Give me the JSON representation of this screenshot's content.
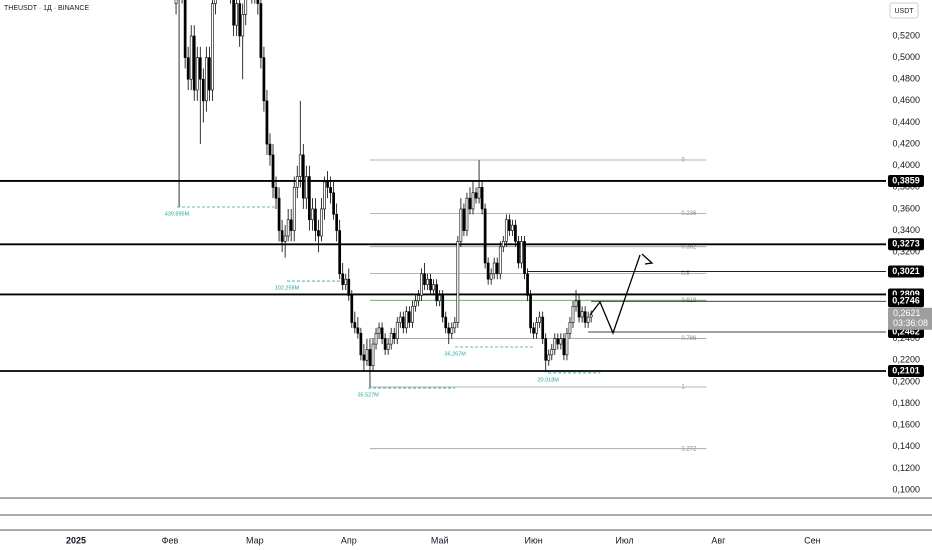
{
  "chart_data": {
    "type": "candlestick",
    "title": "THEUSDT · 1Д · BINANCE",
    "unit": "USDT",
    "x": [
      33,
      34,
      35,
      36,
      37,
      38,
      39,
      40,
      41,
      42,
      43,
      44,
      45,
      46,
      47,
      48,
      49,
      50,
      51,
      52,
      53,
      54,
      55,
      56,
      57,
      58,
      59,
      60,
      61,
      62,
      63,
      64,
      65,
      66,
      67,
      68,
      69,
      70,
      71,
      72,
      73,
      74,
      75,
      76,
      77,
      78,
      79,
      80,
      81,
      82,
      83,
      84,
      85,
      86,
      87,
      88,
      89,
      90,
      91,
      92,
      93,
      94,
      95,
      96,
      97,
      98,
      99,
      100,
      101,
      102,
      103,
      104,
      105,
      106,
      107,
      108,
      109,
      110,
      111,
      112,
      113,
      114,
      115,
      116,
      117,
      118,
      119,
      120,
      121,
      122,
      123,
      124,
      125,
      126,
      127,
      128,
      129,
      130,
      131,
      132,
      133,
      134,
      135,
      136,
      137,
      138,
      139,
      140,
      141,
      142,
      143,
      144,
      145,
      146,
      147,
      148,
      149,
      150,
      151,
      152,
      153,
      154,
      155,
      156,
      157,
      158,
      159,
      160,
      161,
      162,
      163,
      164,
      165,
      166,
      167,
      168,
      169,
      170
    ],
    "open": [
      0.55,
      0.58,
      0.56,
      0.6,
      0.5,
      0.48,
      0.52,
      0.47,
      0.5,
      0.48,
      0.46,
      0.5,
      0.47,
      0.55,
      0.58,
      0.57,
      0.62,
      0.6,
      0.58,
      0.56,
      0.53,
      0.55,
      0.52,
      0.54,
      0.58,
      0.6,
      0.56,
      0.58,
      0.55,
      0.5,
      0.46,
      0.42,
      0.41,
      0.38,
      0.37,
      0.34,
      0.33,
      0.335,
      0.35,
      0.34,
      0.38,
      0.39,
      0.41,
      0.37,
      0.39,
      0.35,
      0.36,
      0.34,
      0.335,
      0.36,
      0.385,
      0.38,
      0.375,
      0.355,
      0.34,
      0.3,
      0.29,
      0.295,
      0.28,
      0.255,
      0.25,
      0.245,
      0.225,
      0.22,
      0.23,
      0.215,
      0.235,
      0.245,
      0.25,
      0.24,
      0.23,
      0.235,
      0.245,
      0.24,
      0.255,
      0.26,
      0.25,
      0.265,
      0.255,
      0.27,
      0.275,
      0.28,
      0.3,
      0.29,
      0.295,
      0.285,
      0.29,
      0.275,
      0.28,
      0.26,
      0.25,
      0.245,
      0.25,
      0.255,
      0.33,
      0.36,
      0.34,
      0.37,
      0.36,
      0.375,
      0.37,
      0.38,
      0.36,
      0.31,
      0.295,
      0.3,
      0.31,
      0.3,
      0.325,
      0.33,
      0.35,
      0.34,
      0.345,
      0.33,
      0.31,
      0.33,
      0.3,
      0.28,
      0.25,
      0.245,
      0.255,
      0.26,
      0.24,
      0.22,
      0.225,
      0.23,
      0.24,
      0.235,
      0.24,
      0.225,
      0.245,
      0.255,
      0.27,
      0.275,
      0.26,
      0.265,
      0.255,
      0.26
    ],
    "high": [
      0.59,
      0.59,
      0.61,
      0.61,
      0.51,
      0.53,
      0.53,
      0.51,
      0.51,
      0.49,
      0.51,
      0.51,
      0.56,
      0.59,
      0.59,
      0.63,
      0.63,
      0.61,
      0.59,
      0.57,
      0.56,
      0.56,
      0.55,
      0.59,
      0.61,
      0.61,
      0.59,
      0.59,
      0.56,
      0.51,
      0.47,
      0.43,
      0.42,
      0.39,
      0.38,
      0.35,
      0.345,
      0.36,
      0.36,
      0.39,
      0.4,
      0.46,
      0.42,
      0.4,
      0.4,
      0.37,
      0.37,
      0.35,
      0.37,
      0.39,
      0.395,
      0.39,
      0.385,
      0.365,
      0.35,
      0.31,
      0.3,
      0.305,
      0.285,
      0.265,
      0.26,
      0.25,
      0.235,
      0.24,
      0.24,
      0.24,
      0.25,
      0.255,
      0.255,
      0.245,
      0.24,
      0.25,
      0.25,
      0.26,
      0.265,
      0.265,
      0.27,
      0.27,
      0.275,
      0.28,
      0.285,
      0.305,
      0.31,
      0.3,
      0.3,
      0.295,
      0.295,
      0.285,
      0.285,
      0.265,
      0.255,
      0.255,
      0.26,
      0.335,
      0.37,
      0.365,
      0.375,
      0.38,
      0.385,
      0.38,
      0.405,
      0.385,
      0.365,
      0.315,
      0.305,
      0.315,
      0.315,
      0.33,
      0.335,
      0.355,
      0.355,
      0.35,
      0.35,
      0.335,
      0.335,
      0.335,
      0.305,
      0.285,
      0.255,
      0.26,
      0.265,
      0.265,
      0.245,
      0.23,
      0.235,
      0.245,
      0.245,
      0.245,
      0.245,
      0.25,
      0.26,
      0.275,
      0.285,
      0.28,
      0.27,
      0.27,
      0.265,
      0.266
    ],
    "low": [
      0.54,
      0.362,
      0.55,
      0.49,
      0.47,
      0.47,
      0.46,
      0.46,
      0.42,
      0.44,
      0.45,
      0.46,
      0.46,
      0.54,
      0.56,
      0.56,
      0.59,
      0.57,
      0.55,
      0.52,
      0.52,
      0.51,
      0.48,
      0.53,
      0.57,
      0.55,
      0.55,
      0.54,
      0.49,
      0.45,
      0.41,
      0.4,
      0.37,
      0.36,
      0.33,
      0.32,
      0.315,
      0.33,
      0.33,
      0.33,
      0.37,
      0.38,
      0.36,
      0.36,
      0.34,
      0.34,
      0.33,
      0.32,
      0.33,
      0.35,
      0.37,
      0.365,
      0.35,
      0.33,
      0.295,
      0.285,
      0.285,
      0.275,
      0.25,
      0.245,
      0.24,
      0.22,
      0.21,
      0.215,
      0.195,
      0.21,
      0.23,
      0.24,
      0.235,
      0.225,
      0.225,
      0.23,
      0.235,
      0.235,
      0.25,
      0.245,
      0.245,
      0.25,
      0.25,
      0.265,
      0.27,
      0.275,
      0.285,
      0.285,
      0.28,
      0.28,
      0.27,
      0.27,
      0.255,
      0.245,
      0.235,
      0.24,
      0.245,
      0.25,
      0.325,
      0.335,
      0.335,
      0.355,
      0.355,
      0.365,
      0.365,
      0.355,
      0.305,
      0.29,
      0.29,
      0.295,
      0.295,
      0.295,
      0.32,
      0.325,
      0.335,
      0.335,
      0.325,
      0.305,
      0.305,
      0.295,
      0.275,
      0.245,
      0.24,
      0.24,
      0.25,
      0.235,
      0.209,
      0.215,
      0.22,
      0.225,
      0.23,
      0.23,
      0.22,
      0.22,
      0.24,
      0.25,
      0.265,
      0.255,
      0.255,
      0.25,
      0.25,
      0.255
    ],
    "close": [
      0.58,
      0.56,
      0.6,
      0.5,
      0.48,
      0.52,
      0.47,
      0.5,
      0.48,
      0.46,
      0.5,
      0.47,
      0.55,
      0.58,
      0.57,
      0.62,
      0.6,
      0.58,
      0.56,
      0.53,
      0.55,
      0.52,
      0.54,
      0.58,
      0.6,
      0.56,
      0.58,
      0.55,
      0.5,
      0.46,
      0.42,
      0.41,
      0.38,
      0.37,
      0.34,
      0.33,
      0.335,
      0.35,
      0.34,
      0.38,
      0.39,
      0.41,
      0.37,
      0.39,
      0.35,
      0.36,
      0.34,
      0.335,
      0.36,
      0.385,
      0.38,
      0.375,
      0.355,
      0.34,
      0.3,
      0.29,
      0.295,
      0.28,
      0.255,
      0.25,
      0.245,
      0.225,
      0.22,
      0.23,
      0.215,
      0.235,
      0.245,
      0.25,
      0.24,
      0.23,
      0.235,
      0.245,
      0.24,
      0.255,
      0.26,
      0.25,
      0.265,
      0.255,
      0.27,
      0.275,
      0.28,
      0.3,
      0.29,
      0.295,
      0.285,
      0.29,
      0.275,
      0.28,
      0.26,
      0.25,
      0.245,
      0.25,
      0.255,
      0.33,
      0.36,
      0.34,
      0.37,
      0.36,
      0.375,
      0.37,
      0.38,
      0.36,
      0.31,
      0.295,
      0.3,
      0.31,
      0.3,
      0.325,
      0.33,
      0.35,
      0.34,
      0.345,
      0.33,
      0.31,
      0.33,
      0.3,
      0.28,
      0.25,
      0.245,
      0.255,
      0.26,
      0.24,
      0.22,
      0.225,
      0.23,
      0.24,
      0.235,
      0.24,
      0.225,
      0.245,
      0.255,
      0.27,
      0.275,
      0.26,
      0.265,
      0.255,
      0.26,
      0.2621
    ],
    "xlim": [
      -25.1,
      267.3
    ],
    "xticks": [
      {
        "value": 0,
        "label": "2025"
      },
      {
        "value": 31,
        "label": "Фев"
      },
      {
        "value": 59,
        "label": "Мар"
      },
      {
        "value": 90,
        "label": "Апр"
      },
      {
        "value": 120,
        "label": "Май"
      },
      {
        "value": 151,
        "label": "Июн"
      },
      {
        "value": 181,
        "label": "Июл"
      },
      {
        "value": 212,
        "label": "Авг"
      },
      {
        "value": 243,
        "label": "Сен"
      }
    ],
    "ylim": [
      0.0926,
      0.5533
    ],
    "yticks": [
      {
        "value": 0.1,
        "label": "0,1000"
      },
      {
        "value": 0.12,
        "label": "0,1200"
      },
      {
        "value": 0.14,
        "label": "0,1400"
      },
      {
        "value": 0.16,
        "label": "0,1600"
      },
      {
        "value": 0.18,
        "label": "0,1800"
      },
      {
        "value": 0.2,
        "label": "0,2000"
      },
      {
        "value": 0.22,
        "label": "0,2200"
      },
      {
        "value": 0.24,
        "label": "0,2400"
      },
      {
        "value": 0.26,
        "label": "0,2600"
      },
      {
        "value": 0.28,
        "label": "0,2800"
      },
      {
        "value": 0.3,
        "label": "0,3000"
      },
      {
        "value": 0.32,
        "label": "0,3200"
      },
      {
        "value": 0.34,
        "label": "0,3400"
      },
      {
        "value": 0.36,
        "label": "0,3600"
      },
      {
        "value": 0.38,
        "label": "0,3800"
      },
      {
        "value": 0.4,
        "label": "0,4000"
      },
      {
        "value": 0.42,
        "label": "0,4200"
      },
      {
        "value": 0.44,
        "label": "0,4400"
      },
      {
        "value": 0.46,
        "label": "0,4600"
      },
      {
        "value": 0.48,
        "label": "0,4800"
      },
      {
        "value": 0.5,
        "label": "0,5000"
      },
      {
        "value": 0.52,
        "label": "0,5200"
      }
    ],
    "levels": [
      {
        "value": 0.3859,
        "label": "0,3859",
        "style": "thick"
      },
      {
        "value": 0.3273,
        "label": "0,3273",
        "style": "thick"
      },
      {
        "value": 0.3021,
        "label": "0,3021",
        "style": "thin",
        "from": 149
      },
      {
        "value": 0.2809,
        "label": "0,2809",
        "style": "thick"
      },
      {
        "value": 0.2746,
        "label": "0,2746",
        "style": "thin",
        "from": 170
      },
      {
        "value": 0.2462,
        "label": "0,2462",
        "style": "thin",
        "from": 169
      },
      {
        "value": 0.2101,
        "label": "0,2101",
        "style": "thick"
      }
    ],
    "last_price": {
      "value": 0.2621,
      "label": "0,2621",
      "countdown": "03:36:08"
    },
    "fib": {
      "from": 97,
      "to": 208,
      "levels": [
        {
          "value": 0.4053,
          "label": "0"
        },
        {
          "value": 0.3557,
          "label": "0.236"
        },
        {
          "value": 0.3251,
          "label": "0.382"
        },
        {
          "value": 0.3003,
          "label": "0.5"
        },
        {
          "value": 0.2755,
          "label": "0.618"
        },
        {
          "value": 0.2402,
          "label": "0.786"
        },
        {
          "value": 0.1953,
          "label": "1"
        },
        {
          "value": 0.1382,
          "label": "1.272"
        }
      ]
    },
    "annotations": [
      {
        "text": "439.895M",
        "x": 33.3,
        "x_end": 65.7,
        "y": 0.3618
      },
      {
        "text": "102.259M",
        "x": 69.6,
        "x_end": 88.8,
        "y": 0.2933
      },
      {
        "text": "35.527M",
        "x": 96.4,
        "x_end": 125.1,
        "y": 0.1943
      },
      {
        "text": "36.267M",
        "x": 125.1,
        "x_end": 150.8,
        "y": 0.2323
      },
      {
        "text": "20.018M",
        "x": 155.8,
        "x_end": 173,
        "y": 0.2083
      }
    ]
  }
}
